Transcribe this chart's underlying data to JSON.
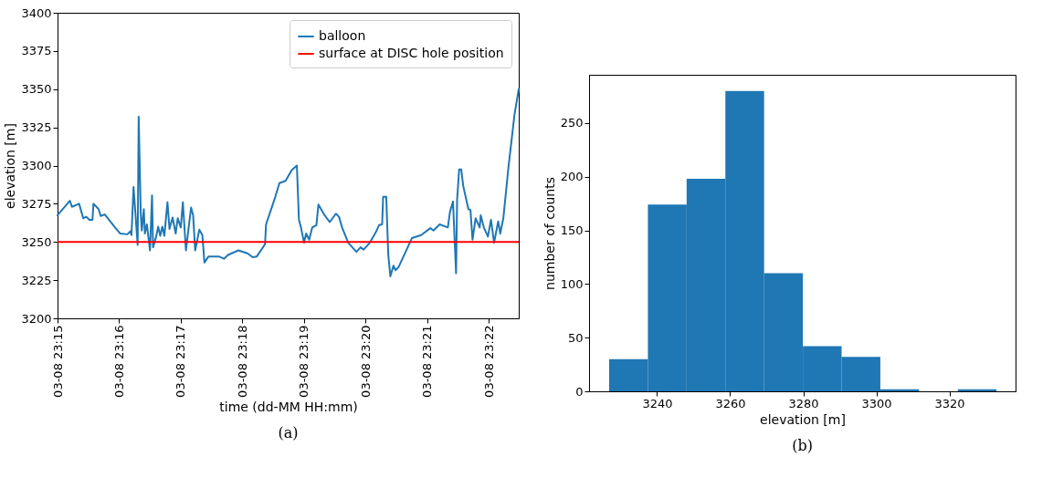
{
  "chart_data": [
    {
      "type": "line",
      "xlabel": "time (dd-MM HH:mm)",
      "ylabel": "elevation [m]",
      "x": [
        "--03-08T23:15:00",
        "--03-08T23:15:12",
        "--03-08T23:15:14",
        "--03-08T23:15:21",
        "--03-08T23:15:25",
        "--03-08T23:15:28",
        "--03-08T23:15:31",
        "--03-08T23:15:34",
        "--03-08T23:15:35",
        "--03-08T23:15:40",
        "--03-08T23:15:42",
        "--03-08T23:15:46",
        "--03-08T23:15:56",
        "--03-08T23:16:01",
        "--03-08T23:16:08",
        "--03-08T23:16:11",
        "--03-08T23:16:12",
        "--03-08T23:16:14",
        "--03-08T23:16:18",
        "--03-08T23:16:19",
        "--03-08T23:16:21",
        "--03-08T23:16:22",
        "--03-08T23:16:24",
        "--03-08T23:16:25",
        "--03-08T23:16:27",
        "--03-08T23:16:30",
        "--03-08T23:16:32",
        "--03-08T23:16:33",
        "--03-08T23:16:36",
        "--03-08T23:16:38",
        "--03-08T23:16:40",
        "--03-08T23:16:42",
        "--03-08T23:16:44",
        "--03-08T23:16:47",
        "--03-08T23:16:49",
        "--03-08T23:16:52",
        "--03-08T23:16:55",
        "--03-08T23:16:57",
        "--03-08T23:17:00",
        "--03-08T23:17:02",
        "--03-08T23:17:05",
        "--03-08T23:17:10",
        "--03-08T23:17:12",
        "--03-08T23:17:14",
        "--03-08T23:17:18",
        "--03-08T23:17:21",
        "--03-08T23:17:23",
        "--03-08T23:17:27",
        "--03-08T23:17:37",
        "--03-08T23:17:42",
        "--03-08T23:17:46",
        "--03-08T23:17:56",
        "--03-08T23:18:05",
        "--03-08T23:18:10",
        "--03-08T23:18:14",
        "--03-08T23:18:22",
        "--03-08T23:18:23",
        "--03-08T23:18:32",
        "--03-08T23:18:36",
        "--03-08T23:18:42",
        "--03-08T23:18:48",
        "--03-08T23:18:53",
        "--03-08T23:18:55",
        "--03-08T23:18:57",
        "--03-08T23:19:00",
        "--03-08T23:19:02",
        "--03-08T23:19:05",
        "--03-08T23:19:08",
        "--03-08T23:19:12",
        "--03-08T23:19:14",
        "--03-08T23:19:20",
        "--03-08T23:19:25",
        "--03-08T23:19:31",
        "--03-08T23:19:34",
        "--03-08T23:19:37",
        "--03-08T23:19:43",
        "--03-08T23:19:51",
        "--03-08T23:19:55",
        "--03-08T23:19:58",
        "--03-08T23:20:04",
        "--03-08T23:20:10",
        "--03-08T23:20:13",
        "--03-08T23:20:16",
        "--03-08T23:20:17",
        "--03-08T23:20:20",
        "--03-08T23:20:22",
        "--03-08T23:20:24",
        "--03-08T23:20:27",
        "--03-08T23:20:29",
        "--03-08T23:20:32",
        "--03-08T23:20:45",
        "--03-08T23:20:54",
        "--03-08T23:21:03",
        "--03-08T23:21:06",
        "--03-08T23:21:12",
        "--03-08T23:21:20",
        "--03-08T23:21:22",
        "--03-08T23:21:25",
        "--03-08T23:21:28",
        "--03-08T23:21:29",
        "--03-08T23:21:31",
        "--03-08T23:21:33",
        "--03-08T23:21:35",
        "--03-08T23:21:40",
        "--03-08T23:21:42",
        "--03-08T23:21:44",
        "--03-08T23:21:47",
        "--03-08T23:21:51",
        "--03-08T23:21:52",
        "--03-08T23:21:55",
        "--03-08T23:21:59",
        "--03-08T23:22:02",
        "--03-08T23:22:05",
        "--03-08T23:22:09",
        "--03-08T23:22:11",
        "--03-08T23:22:14",
        "--03-08T23:22:19",
        "--03-08T23:22:25",
        "--03-08T23:22:29"
      ],
      "series": [
        {
          "name": "balloon",
          "color": "#1f77b4",
          "values": [
            3267.5,
            3277,
            3273,
            3275,
            3265.5,
            3266.5,
            3264.5,
            3264.5,
            3275,
            3271.5,
            3267,
            3268,
            3259.5,
            3255.5,
            3255,
            3257,
            3254.5,
            3286,
            3248,
            3332,
            3269,
            3257.5,
            3271.5,
            3255.5,
            3261.5,
            3244.5,
            3280.5,
            3246.5,
            3253.5,
            3260,
            3254,
            3260,
            3254,
            3276,
            3258.5,
            3266,
            3255.5,
            3265.5,
            3259.5,
            3276,
            3244.5,
            3272.5,
            3267.5,
            3244.5,
            3258,
            3254.5,
            3236.5,
            3240.5,
            3240.5,
            3239,
            3241.5,
            3244.5,
            3242.5,
            3240,
            3240.5,
            3248.5,
            3261.5,
            3279.5,
            3288.5,
            3290,
            3297,
            3300,
            3264.5,
            3259.5,
            3249.5,
            3255.5,
            3251.5,
            3259.5,
            3261,
            3274.5,
            3267.5,
            3263,
            3268.5,
            3266.5,
            3259.5,
            3249.5,
            3243.5,
            3246.5,
            3245,
            3249.5,
            3256.5,
            3261,
            3261.5,
            3279.5,
            3279.5,
            3241.5,
            3227.5,
            3234.5,
            3231.5,
            3233.5,
            3252.5,
            3254.5,
            3259,
            3257.5,
            3261.5,
            3259.5,
            3269.5,
            3276.5,
            3229.5,
            3277.5,
            3297.5,
            3297.5,
            3286.5,
            3271.5,
            3271,
            3251.5,
            3265.5,
            3259.5,
            3267.5,
            3259.5,
            3253.5,
            3264.5,
            3249.5,
            3263.5,
            3255.5,
            3265.5,
            3299,
            3334,
            3350
          ]
        }
      ],
      "xlim": [
        "--03-08T23:15:00",
        "--03-08T23:22:29"
      ],
      "xticks": [
        {
          "value": "--03-08T23:15",
          "label": "03-08 23:15"
        },
        {
          "value": "--03-08T23:16",
          "label": "03-08 23:16"
        },
        {
          "value": "--03-08T23:17",
          "label": "03-08 23:17"
        },
        {
          "value": "--03-08T23:18",
          "label": "03-08 23:18"
        },
        {
          "value": "--03-08T23:19",
          "label": "03-08 23:19"
        },
        {
          "value": "--03-08T23:20",
          "label": "03-08 23:20"
        },
        {
          "value": "--03-08T23:21",
          "label": "03-08 23:21"
        },
        {
          "value": "--03-08T23:22",
          "label": "03-08 23:22"
        }
      ],
      "ylim": [
        3200,
        3400
      ],
      "yticks": [
        3200,
        3225,
        3250,
        3275,
        3300,
        3325,
        3350,
        3375,
        3400
      ],
      "ref_lines": [
        {
          "axis": "y",
          "value": 3250,
          "label": "surface at DISC hole position",
          "color": "#ff0000"
        }
      ],
      "legend": "top right",
      "annotations": [
        "(a)"
      ]
    },
    {
      "type": "histogram",
      "xlabel": "elevation [m]",
      "ylabel": "number of counts",
      "color": "#1f77b4",
      "bins": [
        3226.9,
        3237.5,
        3248.1,
        3258.7,
        3269.3,
        3279.9,
        3290.5,
        3301.1,
        3311.7,
        3322.3,
        3332.9
      ],
      "values": [
        30,
        174,
        198,
        280,
        110,
        42,
        32,
        2,
        0,
        2
      ],
      "xlim": [
        3221.4,
        3338.1
      ],
      "xticks": [
        3240,
        3260,
        3280,
        3300,
        3320
      ],
      "ylim": [
        0,
        295
      ],
      "yticks": [
        0,
        50,
        100,
        150,
        200,
        250
      ],
      "annotations": [
        "(b)"
      ]
    }
  ]
}
